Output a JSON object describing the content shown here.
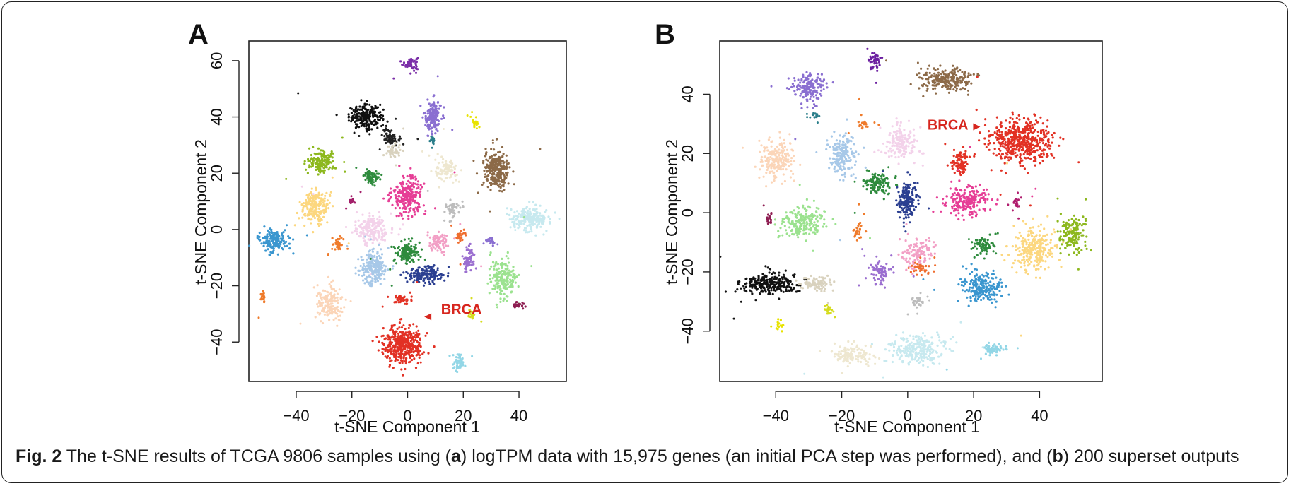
{
  "caption": {
    "label": "Fig. 2",
    "text_1": " The t-SNE results of TCGA 9806 samples using (",
    "a": "a",
    "text_2": ") logTPM data with 15,975 genes (an initial PCA step was performed), and (",
    "b": "b",
    "text_3": ") 200 superset outputs"
  },
  "chart_data": [
    {
      "type": "scatter",
      "panel": "A",
      "xlabel": "t-SNE Component 1",
      "ylabel": "t-SNE Component 2",
      "xlim": [
        -57,
        57
      ],
      "ylim": [
        -54,
        67
      ],
      "xticks": [
        -40,
        -20,
        0,
        20,
        40
      ],
      "yticks": [
        -40,
        -20,
        0,
        20,
        40,
        60
      ],
      "grid": false,
      "annotations": [
        {
          "text": "BRCA",
          "x": 12,
          "y": -30,
          "color": "#d7261e",
          "arrow_to": [
            6,
            -31
          ]
        }
      ],
      "clusters": [
        {
          "cx": 1,
          "cy": 59,
          "rx": 2.8,
          "ry": 2.5,
          "n": 50,
          "color": "#7b2fa8"
        },
        {
          "cx": -15,
          "cy": 40,
          "rx": 6,
          "ry": 4,
          "n": 220,
          "color": "#111111"
        },
        {
          "cx": -6,
          "cy": 33,
          "rx": 3,
          "ry": 3,
          "n": 70,
          "color": "#222222"
        },
        {
          "cx": -5,
          "cy": 28,
          "rx": 2.5,
          "ry": 2.5,
          "n": 40,
          "color": "#d9d2be"
        },
        {
          "cx": 9,
          "cy": 40,
          "rx": 3,
          "ry": 6,
          "n": 160,
          "color": "#8a6fd1"
        },
        {
          "cx": 9,
          "cy": 32,
          "rx": 1.5,
          "ry": 1,
          "n": 12,
          "color": "#2a7e8a"
        },
        {
          "cx": 24,
          "cy": 38,
          "rx": 1.2,
          "ry": 1.5,
          "n": 15,
          "color": "#e8e300"
        },
        {
          "cx": 32,
          "cy": 21,
          "rx": 4.5,
          "ry": 7,
          "n": 260,
          "color": "#8c6a48"
        },
        {
          "cx": 14,
          "cy": 21,
          "rx": 4,
          "ry": 4,
          "n": 90,
          "color": "#eee7d0"
        },
        {
          "cx": -31,
          "cy": 24,
          "rx": 5,
          "ry": 4,
          "n": 150,
          "color": "#8db81e"
        },
        {
          "cx": -13,
          "cy": 19,
          "rx": 3,
          "ry": 2.5,
          "n": 70,
          "color": "#2e8b3d"
        },
        {
          "cx": 0,
          "cy": 12,
          "rx": 5.5,
          "ry": 6.5,
          "n": 240,
          "color": "#e63e96"
        },
        {
          "cx": -33,
          "cy": 8,
          "rx": 5,
          "ry": 5.5,
          "n": 200,
          "color": "#fcd77f"
        },
        {
          "cx": -20,
          "cy": 10,
          "rx": 1,
          "ry": 1,
          "n": 12,
          "color": "#a3206a"
        },
        {
          "cx": 16,
          "cy": 7,
          "rx": 3,
          "ry": 3,
          "n": 50,
          "color": "#bdbdbd"
        },
        {
          "cx": 44,
          "cy": 4,
          "rx": 7,
          "ry": 4,
          "n": 230,
          "color": "#c7e9ef"
        },
        {
          "cx": -13,
          "cy": 0,
          "rx": 6,
          "ry": 5,
          "n": 200,
          "color": "#f3d2ea"
        },
        {
          "cx": 0,
          "cy": -8,
          "rx": 4,
          "ry": 4,
          "n": 150,
          "color": "#2e8b3d"
        },
        {
          "cx": -12,
          "cy": -14,
          "rx": 5,
          "ry": 6,
          "n": 220,
          "color": "#a7c8e8"
        },
        {
          "cx": 6,
          "cy": -16,
          "rx": 7,
          "ry": 3,
          "n": 170,
          "color": "#2b3f91"
        },
        {
          "cx": 11,
          "cy": -5,
          "rx": 4,
          "ry": 4,
          "n": 80,
          "color": "#f29fc5"
        },
        {
          "cx": 19,
          "cy": -2,
          "rx": 1.5,
          "ry": 2,
          "n": 25,
          "color": "#ef6d2e"
        },
        {
          "cx": 22,
          "cy": -10,
          "rx": 2,
          "ry": 4,
          "n": 70,
          "color": "#9b6fd0"
        },
        {
          "cx": 30,
          "cy": -4,
          "rx": 1.5,
          "ry": 1,
          "n": 18,
          "color": "#8a6fd1"
        },
        {
          "cx": 34,
          "cy": -17,
          "rx": 5,
          "ry": 6,
          "n": 200,
          "color": "#9be28f"
        },
        {
          "cx": -48,
          "cy": -4,
          "rx": 5,
          "ry": 4,
          "n": 170,
          "color": "#3a96cf"
        },
        {
          "cx": -25,
          "cy": -5,
          "rx": 2,
          "ry": 2,
          "n": 30,
          "color": "#ef7b2b"
        },
        {
          "cx": -52,
          "cy": -24,
          "rx": 1,
          "ry": 2.5,
          "n": 20,
          "color": "#ef7b2b"
        },
        {
          "cx": -28,
          "cy": -26,
          "rx": 5,
          "ry": 6,
          "n": 160,
          "color": "#fbd5b8"
        },
        {
          "cx": -2,
          "cy": -25,
          "rx": 3,
          "ry": 2,
          "n": 40,
          "color": "#e23124"
        },
        {
          "cx": -2,
          "cy": -41,
          "rx": 7,
          "ry": 6.5,
          "n": 420,
          "color": "#e23124"
        },
        {
          "cx": 23,
          "cy": -30,
          "rx": 1.5,
          "ry": 1.5,
          "n": 18,
          "color": "#d5dc1e"
        },
        {
          "cx": 39,
          "cy": -27,
          "rx": 2.5,
          "ry": 1,
          "n": 25,
          "color": "#8e1e52"
        },
        {
          "cx": 18,
          "cy": -47,
          "rx": 2,
          "ry": 3,
          "n": 50,
          "color": "#92d6e6"
        }
      ]
    },
    {
      "type": "scatter",
      "panel": "B",
      "xlabel": "t-SNE Component 1",
      "ylabel": "t-SNE Component 2",
      "xlim": [
        -57,
        59
      ],
      "ylim": [
        -57,
        58
      ],
      "xticks": [
        -40,
        -20,
        0,
        20,
        40
      ],
      "yticks": [
        -40,
        -20,
        0,
        20,
        40
      ],
      "grid": false,
      "annotations": [
        {
          "text": "BRCA",
          "x": 6,
          "y": 28,
          "color": "#d7261e",
          "arrow_to": [
            22,
            29
          ]
        }
      ],
      "clusters": [
        {
          "cx": -10,
          "cy": 51,
          "rx": 2,
          "ry": 3,
          "n": 45,
          "color": "#6b1fa0"
        },
        {
          "cx": 12,
          "cy": 45,
          "rx": 8,
          "ry": 4,
          "n": 220,
          "color": "#8c6a48"
        },
        {
          "cx": -30,
          "cy": 42,
          "rx": 4.5,
          "ry": 5,
          "n": 170,
          "color": "#8a6fd1"
        },
        {
          "cx": -28,
          "cy": 33,
          "rx": 1,
          "ry": 1,
          "n": 10,
          "color": "#2a7e8a"
        },
        {
          "cx": 34,
          "cy": 24,
          "rx": 10,
          "ry": 7.5,
          "n": 480,
          "color": "#e23124"
        },
        {
          "cx": 16,
          "cy": 17,
          "rx": 3,
          "ry": 4,
          "n": 90,
          "color": "#e23124"
        },
        {
          "cx": -40,
          "cy": 18,
          "rx": 6,
          "ry": 7,
          "n": 200,
          "color": "#fbd5b8"
        },
        {
          "cx": -20,
          "cy": 20,
          "rx": 4,
          "ry": 7,
          "n": 170,
          "color": "#a7c8e8"
        },
        {
          "cx": -2,
          "cy": 24,
          "rx": 5,
          "ry": 6,
          "n": 160,
          "color": "#f3d2ea"
        },
        {
          "cx": -13,
          "cy": 30,
          "rx": 1.5,
          "ry": 1.5,
          "n": 15,
          "color": "#ef7b2b"
        },
        {
          "cx": -9,
          "cy": 10,
          "rx": 4,
          "ry": 4,
          "n": 120,
          "color": "#2e8b3d"
        },
        {
          "cx": 0,
          "cy": 4,
          "rx": 3,
          "ry": 6,
          "n": 170,
          "color": "#2b3f91"
        },
        {
          "cx": 18,
          "cy": 4,
          "rx": 7,
          "ry": 5,
          "n": 220,
          "color": "#e63e96"
        },
        {
          "cx": 33,
          "cy": 3,
          "rx": 1.5,
          "ry": 1.5,
          "n": 15,
          "color": "#b01e6f"
        },
        {
          "cx": -42,
          "cy": -2,
          "rx": 1,
          "ry": 2,
          "n": 15,
          "color": "#8e1e52"
        },
        {
          "cx": -32,
          "cy": -3,
          "rx": 6.5,
          "ry": 5.5,
          "n": 200,
          "color": "#9be28f"
        },
        {
          "cx": -15,
          "cy": -6,
          "rx": 1.5,
          "ry": 3,
          "n": 25,
          "color": "#ef7b2b"
        },
        {
          "cx": 50,
          "cy": -7,
          "rx": 3.5,
          "ry": 6,
          "n": 150,
          "color": "#8db81e"
        },
        {
          "cx": 38,
          "cy": -12,
          "rx": 7,
          "ry": 7,
          "n": 260,
          "color": "#fcd77f"
        },
        {
          "cx": 23,
          "cy": -11,
          "rx": 3,
          "ry": 3,
          "n": 70,
          "color": "#2e8b3d"
        },
        {
          "cx": 3,
          "cy": -14,
          "rx": 5,
          "ry": 5,
          "n": 110,
          "color": "#f29fc5"
        },
        {
          "cx": 4,
          "cy": -19,
          "rx": 3,
          "ry": 2,
          "n": 30,
          "color": "#ef6d2e"
        },
        {
          "cx": -8,
          "cy": -20,
          "rx": 3,
          "ry": 4,
          "n": 70,
          "color": "#9b6fd0"
        },
        {
          "cx": -42,
          "cy": -24,
          "rx": 8,
          "ry": 3.5,
          "n": 260,
          "color": "#111111"
        },
        {
          "cx": -28,
          "cy": -24,
          "rx": 5,
          "ry": 2.5,
          "n": 90,
          "color": "#d9d2be"
        },
        {
          "cx": 22,
          "cy": -25,
          "rx": 6,
          "ry": 5,
          "n": 220,
          "color": "#3a96cf"
        },
        {
          "cx": 3,
          "cy": -30,
          "rx": 2,
          "ry": 1.5,
          "n": 25,
          "color": "#bdbdbd"
        },
        {
          "cx": -24,
          "cy": -33,
          "rx": 1.3,
          "ry": 1.5,
          "n": 18,
          "color": "#d5dc1e"
        },
        {
          "cx": -39,
          "cy": -38,
          "rx": 1,
          "ry": 1.5,
          "n": 15,
          "color": "#e8e300"
        },
        {
          "cx": -17,
          "cy": -48,
          "rx": 6,
          "ry": 3.5,
          "n": 130,
          "color": "#eee7d0"
        },
        {
          "cx": 3,
          "cy": -46,
          "rx": 9,
          "ry": 5,
          "n": 250,
          "color": "#c7e9ef"
        },
        {
          "cx": 26,
          "cy": -46,
          "rx": 3.5,
          "ry": 2,
          "n": 60,
          "color": "#92d6e6"
        }
      ]
    }
  ]
}
